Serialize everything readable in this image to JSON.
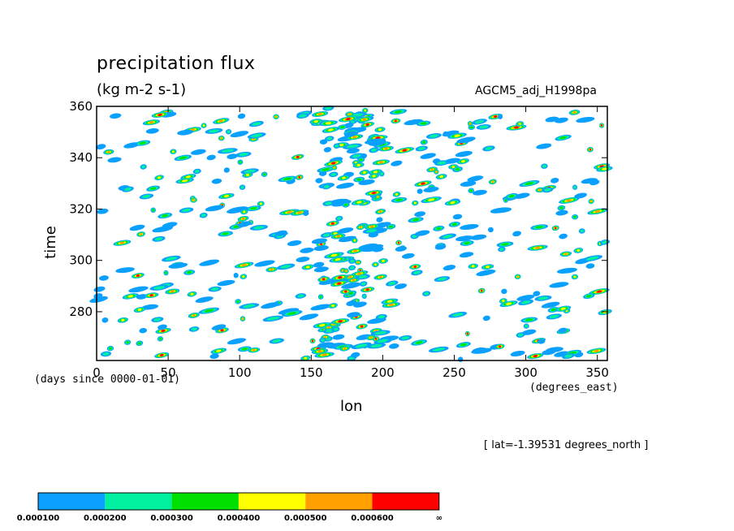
{
  "chart_data": {
    "type": "heatmap",
    "title": "precipitation flux",
    "units": "(kg m-2 s-1)",
    "dataset": "AGCM5_adj_H1998pa",
    "xlabel": "lon",
    "x_units": "(degrees_east)",
    "ylabel": "time",
    "y_units": "(days since 0000-01-01)",
    "note": "[ lat=-1.39531 degrees_north ]",
    "xlim": [
      0,
      357
    ],
    "ylim": [
      261,
      360
    ],
    "x_ticks": [
      "0",
      "50",
      "100",
      "150",
      "200",
      "250",
      "300",
      "350"
    ],
    "x_tick_values": [
      0,
      50,
      100,
      150,
      200,
      250,
      300,
      350
    ],
    "y_ticks": [
      "280",
      "300",
      "320",
      "340",
      "360"
    ],
    "y_tick_values": [
      280,
      300,
      320,
      340,
      360
    ],
    "grid": false,
    "colorbar": {
      "colors": [
        "#0aa0ff",
        "#00f0a0",
        "#00e000",
        "#ffff00",
        "#ffa000",
        "#ff0000"
      ],
      "labels": [
        "0.000100",
        "0.000200",
        "0.000300",
        "0.000400",
        "0.000500",
        "0.000600",
        "∞"
      ]
    }
  }
}
